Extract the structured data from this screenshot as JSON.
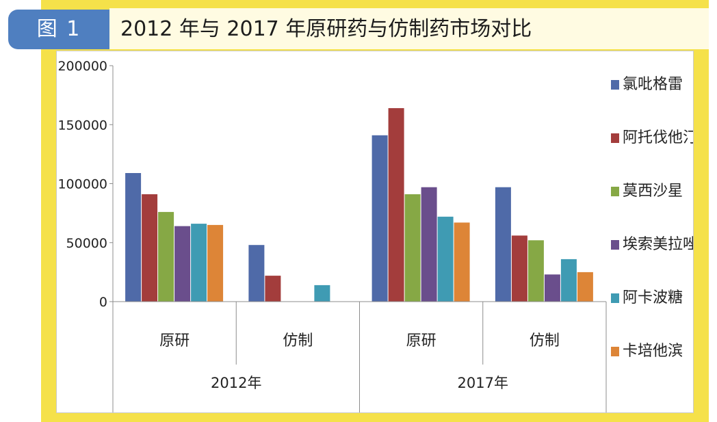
{
  "header": {
    "figure_label": "图 1",
    "title": "2012 年与 2017 年原研药与仿制药市场对比"
  },
  "colors": {
    "frame": "#f5e14a",
    "tab": "#4f7fc0",
    "title_background": "#fffbe2"
  },
  "chart_data": {
    "type": "bar",
    "title": "2012 年与 2017 年原研药与仿制药市场对比",
    "categories": [
      {
        "group": "2012年",
        "label": "原研"
      },
      {
        "group": "2012年",
        "label": "仿制"
      },
      {
        "group": "2017年",
        "label": "原研"
      },
      {
        "group": "2017年",
        "label": "仿制"
      }
    ],
    "groups": [
      "2012年",
      "2017年"
    ],
    "series": [
      {
        "name": "氯吡格雷",
        "color": "#4f6aa8",
        "values": [
          109000,
          48000,
          141000,
          97000
        ]
      },
      {
        "name": "阿托伐他汀",
        "color": "#a33d3c",
        "values": [
          91000,
          22000,
          164000,
          56000
        ]
      },
      {
        "name": "莫西沙星",
        "color": "#86a845",
        "values": [
          76000,
          0,
          91000,
          52000
        ]
      },
      {
        "name": "埃索美拉唑",
        "color": "#6a4e8c",
        "values": [
          64000,
          0,
          97000,
          23000
        ]
      },
      {
        "name": "阿卡波糖",
        "color": "#3f9bb3",
        "values": [
          66000,
          14000,
          72000,
          36000
        ]
      },
      {
        "name": "卡培他滨",
        "color": "#dd8537",
        "values": [
          65000,
          0,
          67000,
          25000
        ]
      }
    ],
    "yticks": [
      0,
      50000,
      100000,
      150000,
      200000
    ],
    "ylim": [
      0,
      200000
    ],
    "xlabel": "",
    "ylabel": "",
    "grid": false,
    "legend_position": "right"
  }
}
